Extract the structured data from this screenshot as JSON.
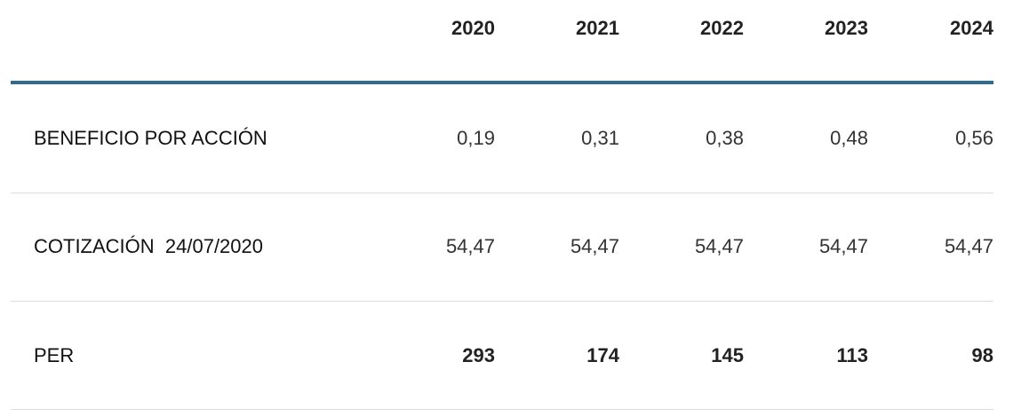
{
  "table": {
    "columns": [
      "2020",
      "2021",
      "2022",
      "2023",
      "2024"
    ],
    "rows": [
      {
        "label": "BENEFICIO POR ACCIÓN",
        "values": [
          "0,19",
          "0,31",
          "0,38",
          "0,48",
          "0,56"
        ]
      },
      {
        "label": "COTIZACIÓN  24/07/2020",
        "values": [
          "54,47",
          "54,47",
          "54,47",
          "54,47",
          "54,47"
        ]
      },
      {
        "label": "PER",
        "values": [
          293,
          174,
          145,
          113,
          98
        ]
      }
    ]
  }
}
